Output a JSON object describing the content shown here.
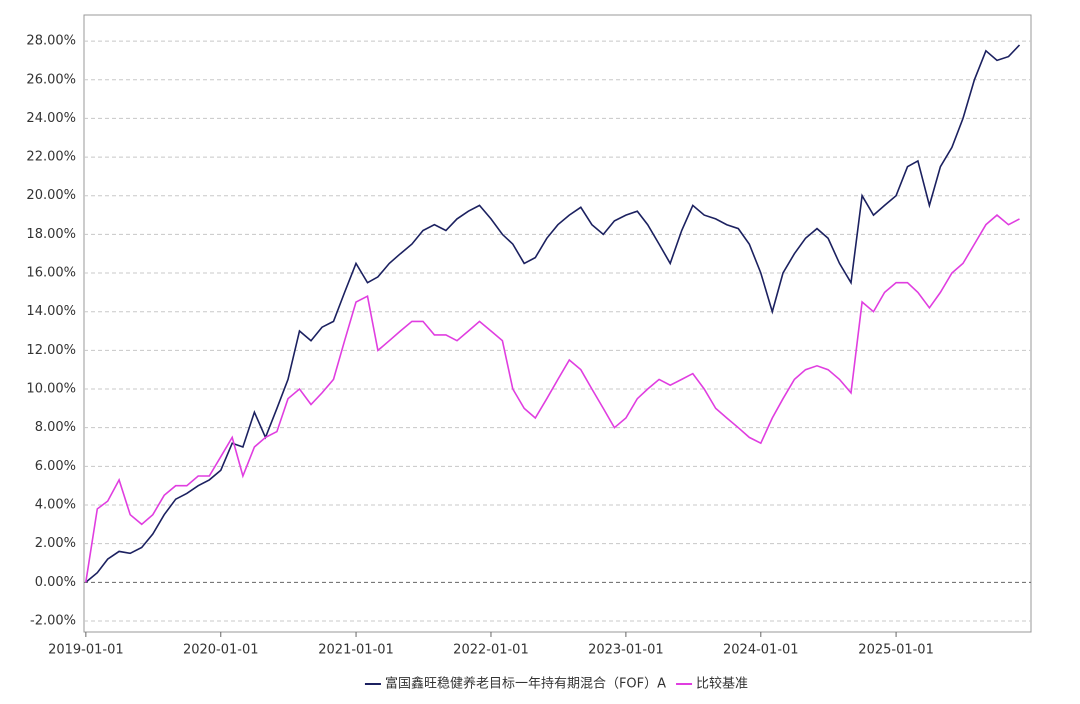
{
  "chart_data": {
    "type": "line",
    "x": [
      "2019-01-01",
      "2019-02-01",
      "2019-03-01",
      "2019-04-01",
      "2019-05-01",
      "2019-06-01",
      "2019-07-01",
      "2019-08-01",
      "2019-09-01",
      "2019-10-01",
      "2019-11-01",
      "2019-12-01",
      "2020-01-01",
      "2020-02-01",
      "2020-03-01",
      "2020-04-01",
      "2020-05-01",
      "2020-06-01",
      "2020-07-01",
      "2020-08-01",
      "2020-09-01",
      "2020-10-01",
      "2020-11-01",
      "2020-12-01",
      "2021-01-01",
      "2021-02-01",
      "2021-03-01",
      "2021-04-01",
      "2021-05-01",
      "2021-06-01",
      "2021-07-01",
      "2021-08-01",
      "2021-09-01",
      "2021-10-01",
      "2021-11-01",
      "2021-12-01",
      "2022-01-01",
      "2022-02-01",
      "2022-03-01",
      "2022-04-01",
      "2022-05-01",
      "2022-06-01",
      "2022-07-01",
      "2022-08-01",
      "2022-09-01",
      "2022-10-01",
      "2022-11-01",
      "2022-12-01",
      "2023-01-01",
      "2023-02-01",
      "2023-03-01",
      "2023-04-01",
      "2023-05-01",
      "2023-06-01",
      "2023-07-01",
      "2023-08-01",
      "2023-09-01",
      "2023-10-01",
      "2023-11-01",
      "2023-12-01",
      "2024-01-01",
      "2024-02-01",
      "2024-03-01",
      "2024-04-01",
      "2024-05-01",
      "2024-06-01",
      "2024-07-01",
      "2024-08-01",
      "2024-09-01",
      "2024-10-01",
      "2024-11-01",
      "2024-12-01",
      "2025-01-01",
      "2025-02-01",
      "2025-03-01",
      "2025-04-01",
      "2025-05-01",
      "2025-06-01",
      "2025-07-01",
      "2025-08-01",
      "2025-09-01",
      "2025-10-01",
      "2025-11-01",
      "2025-12-01"
    ],
    "series": [
      {
        "name": "富国鑫旺稳健养老目标一年持有期混合（FOF）A",
        "color": "#1c2160",
        "values": [
          0,
          0.5,
          1.2,
          1.6,
          1.5,
          1.8,
          2.5,
          3.5,
          4.3,
          4.6,
          5.0,
          5.3,
          5.8,
          7.2,
          7.0,
          8.8,
          7.5,
          9.0,
          10.5,
          13.0,
          12.5,
          13.2,
          13.5,
          15.0,
          16.5,
          15.5,
          15.8,
          16.5,
          17.0,
          17.5,
          18.2,
          18.5,
          18.2,
          18.8,
          19.2,
          19.5,
          18.8,
          18.0,
          17.5,
          16.5,
          16.8,
          17.8,
          18.5,
          19.0,
          19.4,
          18.5,
          18.0,
          18.7,
          19.0,
          19.2,
          18.5,
          17.5,
          16.5,
          18.2,
          19.5,
          19.0,
          18.8,
          18.5,
          18.3,
          17.5,
          16.0,
          14.0,
          16.0,
          17.0,
          17.8,
          18.3,
          17.8,
          16.5,
          15.5,
          20.0,
          19.0,
          19.5,
          20.0,
          21.5,
          21.8,
          19.5,
          21.5,
          22.5,
          24.0,
          26.0,
          27.5,
          27.0,
          27.2,
          27.8
        ]
      },
      {
        "name": "比较基准",
        "color": "#e03ee0",
        "values": [
          0,
          3.8,
          4.2,
          5.3,
          3.5,
          3.0,
          3.5,
          4.5,
          5.0,
          5.0,
          5.5,
          5.5,
          6.5,
          7.5,
          5.5,
          7.0,
          7.5,
          7.8,
          9.5,
          10.0,
          9.2,
          9.8,
          10.5,
          12.5,
          14.5,
          14.8,
          12.0,
          12.5,
          13.0,
          13.5,
          13.5,
          12.8,
          12.8,
          12.5,
          13.0,
          13.5,
          13.0,
          12.5,
          10.0,
          9.0,
          8.5,
          9.5,
          10.5,
          11.5,
          11.0,
          10.0,
          9.0,
          8.0,
          8.5,
          9.5,
          10.0,
          10.5,
          10.2,
          10.5,
          10.8,
          10.0,
          9.0,
          8.5,
          8.0,
          7.5,
          7.2,
          8.5,
          9.5,
          10.5,
          11.0,
          11.2,
          11.0,
          10.5,
          9.8,
          14.5,
          14.0,
          15.0,
          15.5,
          15.5,
          15.0,
          14.2,
          15.0,
          16.0,
          16.5,
          17.5,
          18.5,
          19.0,
          18.5,
          18.8
        ]
      }
    ],
    "xlim": [
      "2018-12-27",
      "2026-01-01"
    ],
    "xticks": [
      "2019-01-01",
      "2020-01-01",
      "2021-01-01",
      "2022-01-01",
      "2023-01-01",
      "2024-01-01",
      "2025-01-01"
    ],
    "ylim": [
      -2.57,
      29.35
    ],
    "yticks": [
      {
        "value": -2,
        "label": "-2.00%"
      },
      {
        "value": 0,
        "label": "0.00%"
      },
      {
        "value": 2,
        "label": "2.00%"
      },
      {
        "value": 4,
        "label": "4.00%"
      },
      {
        "value": 6,
        "label": "6.00%"
      },
      {
        "value": 8,
        "label": "8.00%"
      },
      {
        "value": 10,
        "label": "10.00%"
      },
      {
        "value": 12,
        "label": "12.00%"
      },
      {
        "value": 14,
        "label": "14.00%"
      },
      {
        "value": 16,
        "label": "16.00%"
      },
      {
        "value": 18,
        "label": "18.00%"
      },
      {
        "value": 20,
        "label": "20.00%"
      },
      {
        "value": 22,
        "label": "22.00%"
      },
      {
        "value": 24,
        "label": "24.00%"
      },
      {
        "value": 26,
        "label": "26.00%"
      },
      {
        "value": 28,
        "label": "28.00%"
      }
    ],
    "grid": true,
    "legend": "bottom"
  }
}
